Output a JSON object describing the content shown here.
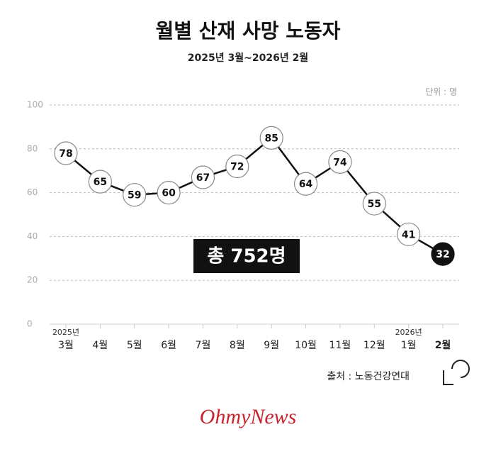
{
  "chart_data": {
    "type": "line",
    "title": "월별 산재 사망 노동자",
    "subtitle": "2025년 3월~2026년 2월",
    "unit_label": "단위 : 명",
    "categories": [
      "3월",
      "4월",
      "5월",
      "6월",
      "7월",
      "8월",
      "9월",
      "10월",
      "11월",
      "12월",
      "1월",
      "2월"
    ],
    "year_labels": [
      "2025년",
      null,
      null,
      null,
      null,
      null,
      null,
      null,
      null,
      null,
      "2026년",
      null
    ],
    "values": [
      78,
      65,
      59,
      60,
      67,
      72,
      85,
      64,
      74,
      55,
      41,
      32
    ],
    "color": "#111111",
    "ylim": [
      0,
      100
    ],
    "yticks": [
      0,
      20,
      40,
      60,
      80,
      100
    ],
    "grid": true,
    "annotation": "총 752명",
    "source": "출처 : 노동건강연대",
    "logo": "OhmyNews"
  }
}
